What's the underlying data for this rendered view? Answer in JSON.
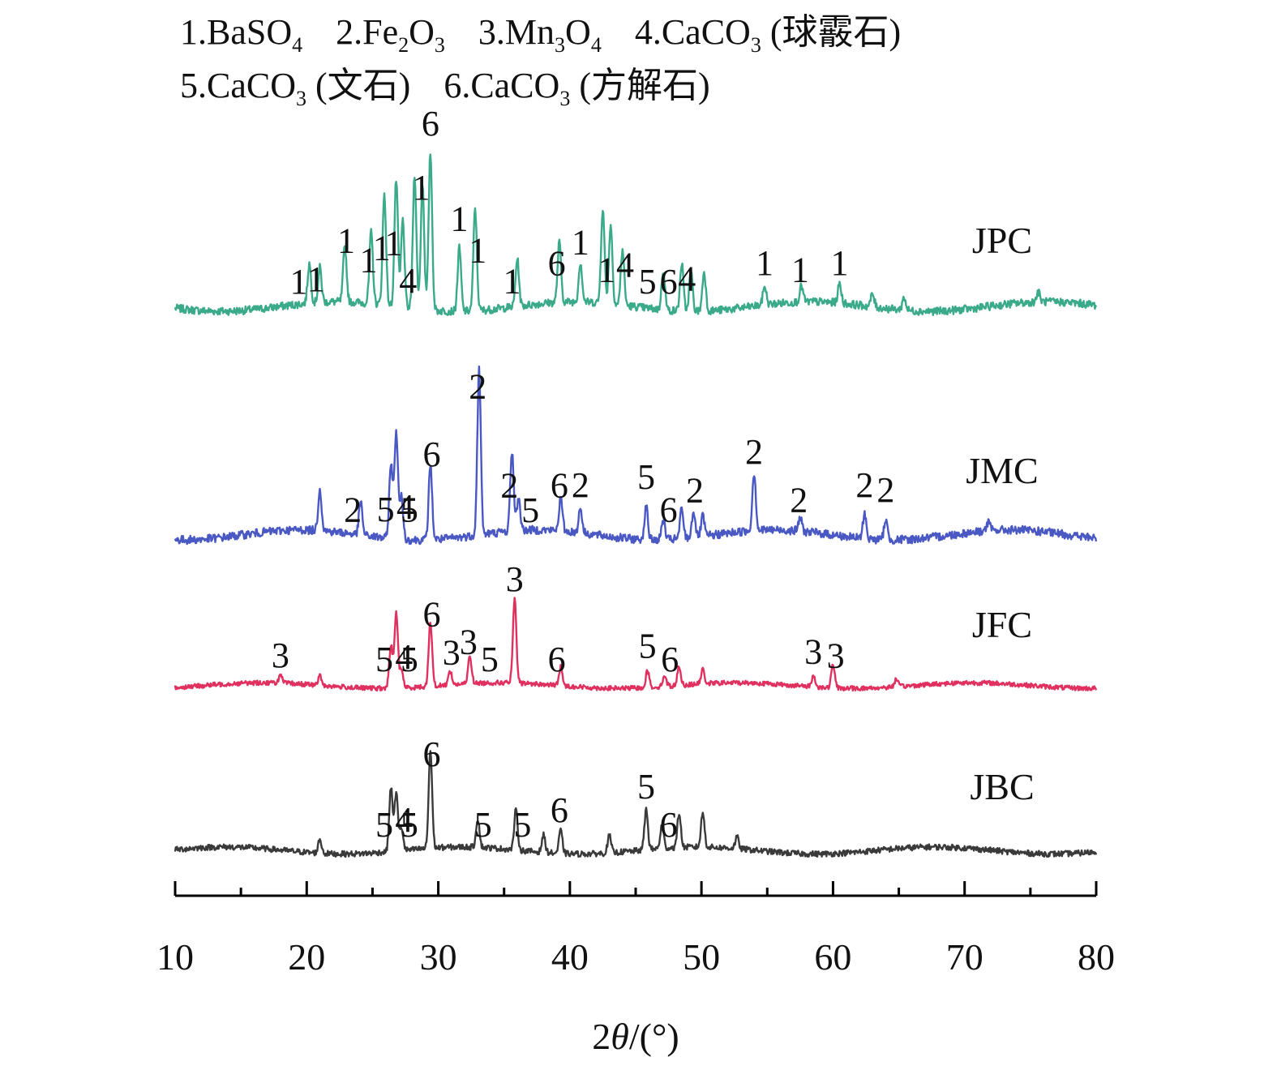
{
  "chart_data": {
    "type": "line",
    "title": "",
    "xlabel": "2θ/(°)",
    "ylabel": "",
    "xlim": [
      10,
      80
    ],
    "xticks": [
      10,
      20,
      30,
      40,
      50,
      60,
      70,
      80
    ],
    "grid": false,
    "legend": [
      {
        "num": "1",
        "formula": "BaSO",
        "sub": "4",
        "note": ""
      },
      {
        "num": "2",
        "formula": "Fe",
        "sub": "2",
        "formula2": "O",
        "sub2": "3",
        "note": ""
      },
      {
        "num": "3",
        "formula": "Mn",
        "sub": "3",
        "formula2": "O",
        "sub2": "4",
        "note": ""
      },
      {
        "num": "4",
        "formula": "CaCO",
        "sub": "3",
        "note": "(球霰石)"
      },
      {
        "num": "5",
        "formula": "CaCO",
        "sub": "3",
        "note": "(文石)"
      },
      {
        "num": "6",
        "formula": "CaCO",
        "sub": "3",
        "note": "(方解石)"
      }
    ],
    "series": [
      {
        "name": "JPC",
        "color": "#3aaa8a",
        "peaks": [
          [
            20.2,
            0.25
          ],
          [
            21,
            0.22
          ],
          [
            22.9,
            0.35
          ],
          [
            24.9,
            0.45
          ],
          [
            25.9,
            0.7
          ],
          [
            26.8,
            0.8
          ],
          [
            27.3,
            0.55
          ],
          [
            28.2,
            0.85
          ],
          [
            28.8,
            0.8
          ],
          [
            29.4,
            1.0
          ],
          [
            31.6,
            0.4
          ],
          [
            32.8,
            0.65
          ],
          [
            36.0,
            0.3
          ],
          [
            39.2,
            0.38
          ],
          [
            40.8,
            0.25
          ],
          [
            42.5,
            0.6
          ],
          [
            43.1,
            0.5
          ],
          [
            44.0,
            0.35
          ],
          [
            47.1,
            0.25
          ],
          [
            48.5,
            0.3
          ],
          [
            49.2,
            0.25
          ],
          [
            50.2,
            0.25
          ],
          [
            54.8,
            0.12
          ],
          [
            57.6,
            0.1
          ],
          [
            60.5,
            0.12
          ],
          [
            63.0,
            0.08
          ],
          [
            65.4,
            0.08
          ],
          [
            75.6,
            0.06
          ]
        ],
        "labels": [
          [
            19.4,
            "1"
          ],
          [
            20.7,
            "1"
          ],
          [
            23.0,
            "1"
          ],
          [
            24.7,
            "1"
          ],
          [
            25.7,
            "1"
          ],
          [
            26.6,
            "1"
          ],
          [
            27.7,
            "4"
          ],
          [
            28.7,
            "1"
          ],
          [
            29.4,
            "6"
          ],
          [
            31.6,
            "1"
          ],
          [
            33.0,
            "1"
          ],
          [
            35.6,
            "1"
          ],
          [
            39.0,
            "6"
          ],
          [
            40.8,
            "1"
          ],
          [
            42.8,
            "1"
          ],
          [
            44.2,
            "4"
          ],
          [
            45.9,
            "5"
          ],
          [
            47.5,
            "6"
          ],
          [
            48.9,
            "4"
          ],
          [
            54.8,
            "1"
          ],
          [
            57.5,
            "1"
          ],
          [
            60.5,
            "1"
          ]
        ]
      },
      {
        "name": "JMC",
        "color": "#4a58c4",
        "peaks": [
          [
            21.0,
            0.25
          ],
          [
            24.1,
            0.2
          ],
          [
            26.4,
            0.45
          ],
          [
            26.8,
            0.65
          ],
          [
            27.2,
            0.25
          ],
          [
            29.4,
            0.45
          ],
          [
            33.1,
            1.0
          ],
          [
            35.6,
            0.48
          ],
          [
            36.1,
            0.2
          ],
          [
            39.3,
            0.2
          ],
          [
            40.8,
            0.15
          ],
          [
            45.8,
            0.2
          ],
          [
            47.1,
            0.12
          ],
          [
            48.5,
            0.18
          ],
          [
            49.4,
            0.16
          ],
          [
            50.1,
            0.12
          ],
          [
            54.0,
            0.35
          ],
          [
            57.5,
            0.08
          ],
          [
            62.4,
            0.15
          ],
          [
            64.0,
            0.12
          ],
          [
            71.8,
            0.05
          ]
        ],
        "labels": [
          [
            23.5,
            "2"
          ],
          [
            26.0,
            "5"
          ],
          [
            27.5,
            "4"
          ],
          [
            27.8,
            "5"
          ],
          [
            29.5,
            "6"
          ],
          [
            33.0,
            "2"
          ],
          [
            35.4,
            "2"
          ],
          [
            37.0,
            "5"
          ],
          [
            39.2,
            "6"
          ],
          [
            40.8,
            "2"
          ],
          [
            45.8,
            "5"
          ],
          [
            47.5,
            "6"
          ],
          [
            49.5,
            "2"
          ],
          [
            54.0,
            "2"
          ],
          [
            57.4,
            "2"
          ],
          [
            62.4,
            "2"
          ],
          [
            64.0,
            "2"
          ]
        ]
      },
      {
        "name": "JFC",
        "color": "#e0305f",
        "peaks": [
          [
            18.0,
            0.08
          ],
          [
            21.0,
            0.1
          ],
          [
            26.4,
            0.45
          ],
          [
            26.8,
            0.8
          ],
          [
            27.2,
            0.2
          ],
          [
            29.4,
            0.7
          ],
          [
            30.9,
            0.15
          ],
          [
            32.4,
            0.3
          ],
          [
            35.8,
            0.9
          ],
          [
            39.3,
            0.2
          ],
          [
            45.9,
            0.18
          ],
          [
            47.2,
            0.12
          ],
          [
            48.3,
            0.2
          ],
          [
            50.1,
            0.15
          ],
          [
            58.5,
            0.12
          ],
          [
            60.0,
            0.25
          ],
          [
            64.8,
            0.08
          ]
        ],
        "labels": [
          [
            18.0,
            "3"
          ],
          [
            25.9,
            "5"
          ],
          [
            27.4,
            "4"
          ],
          [
            27.8,
            "5"
          ],
          [
            29.5,
            "6"
          ],
          [
            31.0,
            "3"
          ],
          [
            32.3,
            "3"
          ],
          [
            33.9,
            "5"
          ],
          [
            35.8,
            "3"
          ],
          [
            39.0,
            "6"
          ],
          [
            45.9,
            "5"
          ],
          [
            47.6,
            "6"
          ],
          [
            58.5,
            "3"
          ],
          [
            60.2,
            "3"
          ]
        ]
      },
      {
        "name": "JBC",
        "color": "#3a3a3a",
        "peaks": [
          [
            21.0,
            0.12
          ],
          [
            26.4,
            0.55
          ],
          [
            26.8,
            0.5
          ],
          [
            27.2,
            0.2
          ],
          [
            29.4,
            0.85
          ],
          [
            33.0,
            0.25
          ],
          [
            35.9,
            0.35
          ],
          [
            38.0,
            0.15
          ],
          [
            39.3,
            0.2
          ],
          [
            43.0,
            0.15
          ],
          [
            45.8,
            0.35
          ],
          [
            47.0,
            0.2
          ],
          [
            48.3,
            0.3
          ],
          [
            50.1,
            0.3
          ],
          [
            52.7,
            0.1
          ]
        ],
        "labels": [
          [
            25.9,
            "5"
          ],
          [
            27.4,
            "4"
          ],
          [
            27.8,
            "5"
          ],
          [
            29.5,
            "6"
          ],
          [
            33.4,
            "5"
          ],
          [
            36.4,
            "5"
          ],
          [
            39.2,
            "6"
          ],
          [
            45.8,
            "5"
          ],
          [
            47.5,
            "6"
          ]
        ]
      }
    ]
  }
}
